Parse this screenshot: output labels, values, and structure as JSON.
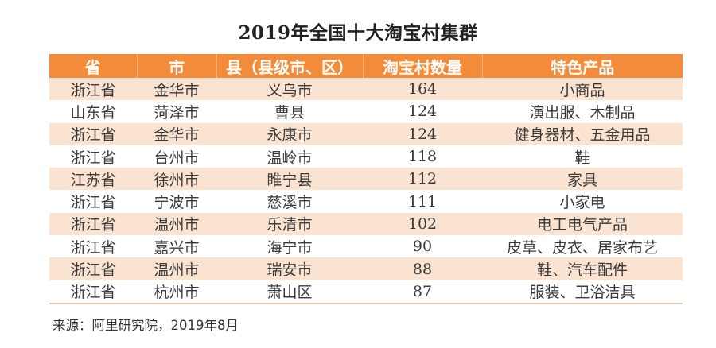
{
  "title": "2019年全国十大淘宝村集群",
  "table": {
    "headers": [
      "省",
      "市",
      "县（县级市、区）",
      "淘宝村数量",
      "特色产品"
    ],
    "rows": [
      [
        "浙江省",
        "金华市",
        "义乌市",
        "164",
        "小商品"
      ],
      [
        "山东省",
        "菏泽市",
        "曹县",
        "124",
        "演出服、木制品"
      ],
      [
        "浙江省",
        "金华市",
        "永康市",
        "124",
        "健身器材、五金用品"
      ],
      [
        "浙江省",
        "台州市",
        "温岭市",
        "118",
        "鞋"
      ],
      [
        "江苏省",
        "徐州市",
        "睢宁县",
        "112",
        "家具"
      ],
      [
        "浙江省",
        "宁波市",
        "慈溪市",
        "111",
        "小家电"
      ],
      [
        "浙江省",
        "温州市",
        "乐清市",
        "102",
        "电工电气产品"
      ],
      [
        "浙江省",
        "嘉兴市",
        "海宁市",
        "90",
        "皮草、皮衣、居家布艺"
      ],
      [
        "浙江省",
        "温州市",
        "瑞安市",
        "88",
        "鞋、汽车配件"
      ],
      [
        "浙江省",
        "杭州市",
        "萧山区",
        "87",
        "服装、卫浴洁具"
      ]
    ]
  },
  "source": "来源：阿里研究院，2019年8月",
  "colors": {
    "header_bg": "#f38c3a",
    "stripe_bg": "#fbe3d1"
  }
}
